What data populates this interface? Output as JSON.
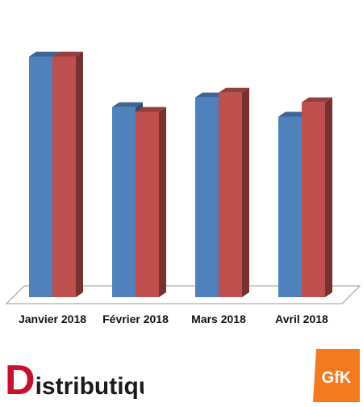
{
  "chart_data": {
    "type": "bar",
    "categories": [
      "Janvier 2018",
      "Février 2018",
      "Mars 2018",
      "Avril 2018"
    ],
    "series": [
      {
        "values": [
          100,
          79,
          83,
          75
        ],
        "color": "#4f81bd"
      },
      {
        "values": [
          100,
          77,
          85,
          81
        ],
        "color": "#c0504d"
      }
    ],
    "ylim": [
      0,
      100
    ],
    "grid": false,
    "legend": "none",
    "style": "3d-column"
  },
  "logos": {
    "distributique": {
      "first_letter": "D",
      "rest": "istributique",
      "accent_color": "#c8102e",
      "text_color": "#1a1a1a"
    },
    "gfk": {
      "text": "GfK",
      "color": "#f47a20"
    }
  }
}
